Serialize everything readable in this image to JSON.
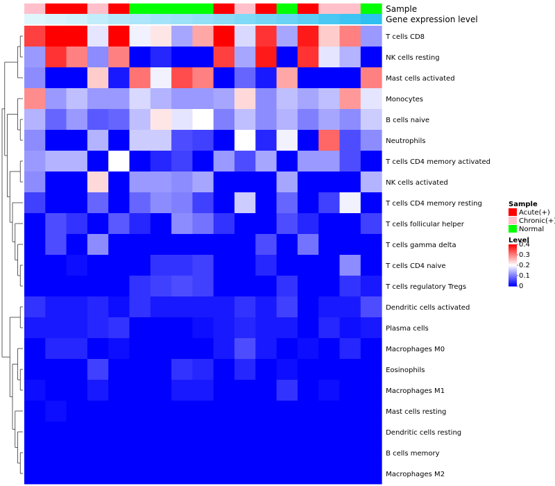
{
  "chart_data": {
    "type": "heatmap",
    "annotation_rows": [
      {
        "label": "Sample",
        "values": [
          "Chronic(+)",
          "Acute(+)",
          "Acute(+)",
          "Chronic(+)",
          "Acute(+)",
          "Normal",
          "Normal",
          "Normal",
          "Normal",
          "Acute(+)",
          "Chronic(+)",
          "Acute(+)",
          "Normal",
          "Acute(+)",
          "Chronic(+)",
          "Chronic(+)",
          "Normal"
        ]
      },
      {
        "label": "Gene expression level",
        "values": [
          1.2,
          1.5,
          1.8,
          2.4,
          2.9,
          3.2,
          3.6,
          3.9,
          4.2,
          4.5,
          5.0,
          5.4,
          5.8,
          6.4,
          7.1,
          7.6,
          8.2
        ]
      }
    ],
    "rows": [
      "T cells CD8",
      "NK cells resting",
      "Mast cells activated",
      "Monocytes",
      "B cells naive",
      "Neutrophils",
      "T cells CD4 memory activated",
      "NK cells activated",
      "T cells CD4 memory resting",
      "T cells follicular helper",
      "T cells gamma delta",
      "T cells CD4 naive",
      "T cells regulatory  Tregs",
      "Dendritic cells activated",
      "Plasma cells",
      "Macrophages M0",
      "Eosinophils",
      "Macrophages M1",
      "Mast cells resting",
      "Dendritic cells resting",
      "B cells memory",
      "Macrophages M2"
    ],
    "values": [
      [
        0.35,
        0.4,
        0.4,
        0.18,
        0.4,
        0.19,
        0.22,
        0.13,
        0.27,
        0.4,
        0.17,
        0.36,
        0.13,
        0.38,
        0.24,
        0.3,
        0.12
      ],
      [
        0.12,
        0.36,
        0.3,
        0.11,
        0.3,
        0.0,
        0.03,
        0.0,
        0.0,
        0.35,
        0.13,
        0.38,
        0.0,
        0.36,
        0.18,
        0.14,
        0.0
      ],
      [
        0.11,
        0.0,
        0.0,
        0.24,
        0.02,
        0.31,
        0.19,
        0.34,
        0.3,
        0.0,
        0.08,
        0.02,
        0.27,
        0.0,
        0.0,
        0.0,
        0.3
      ],
      [
        0.29,
        0.12,
        0.15,
        0.12,
        0.12,
        0.17,
        0.14,
        0.12,
        0.12,
        0.13,
        0.23,
        0.11,
        0.15,
        0.13,
        0.15,
        0.28,
        0.18
      ],
      [
        0.14,
        0.08,
        0.12,
        0.07,
        0.08,
        0.15,
        0.22,
        0.18,
        0.2,
        0.1,
        0.15,
        0.11,
        0.14,
        0.1,
        0.13,
        0.11,
        0.16
      ],
      [
        0.11,
        0.0,
        0.0,
        0.14,
        0.0,
        0.16,
        0.16,
        0.06,
        0.05,
        0.0,
        0.2,
        0.03,
        0.19,
        0.0,
        0.32,
        0.06,
        0.11
      ],
      [
        0.12,
        0.14,
        0.14,
        0.0,
        0.2,
        0.0,
        0.03,
        0.05,
        0.0,
        0.12,
        0.06,
        0.13,
        0.0,
        0.12,
        0.12,
        0.06,
        0.0
      ],
      [
        0.11,
        0.0,
        0.0,
        0.23,
        0.0,
        0.12,
        0.12,
        0.11,
        0.13,
        0.0,
        0.0,
        0.0,
        0.13,
        0.0,
        0.0,
        0.0,
        0.14
      ],
      [
        0.05,
        0.0,
        0.0,
        0.08,
        0.0,
        0.08,
        0.11,
        0.1,
        0.05,
        0.0,
        0.16,
        0.0,
        0.08,
        0.0,
        0.05,
        0.19,
        0.0
      ],
      [
        0.0,
        0.06,
        0.04,
        0.0,
        0.07,
        0.03,
        0.0,
        0.11,
        0.09,
        0.04,
        0.0,
        0.0,
        0.06,
        0.03,
        0.0,
        0.0,
        0.05
      ],
      [
        0.0,
        0.06,
        0.0,
        0.11,
        0.0,
        0.0,
        0.0,
        0.0,
        0.0,
        0.0,
        0.0,
        0.06,
        0.0,
        0.09,
        0.0,
        0.0,
        0.0
      ],
      [
        0.0,
        0.0,
        0.01,
        0.0,
        0.0,
        0.0,
        0.04,
        0.04,
        0.05,
        0.0,
        0.0,
        0.03,
        0.0,
        0.0,
        0.0,
        0.11,
        0.0
      ],
      [
        0.0,
        0.0,
        0.0,
        0.0,
        0.0,
        0.04,
        0.05,
        0.06,
        0.05,
        0.0,
        0.0,
        0.0,
        0.04,
        0.0,
        0.0,
        0.04,
        0.02
      ],
      [
        0.04,
        0.02,
        0.02,
        0.03,
        0.01,
        0.04,
        0.02,
        0.02,
        0.02,
        0.02,
        0.04,
        0.02,
        0.05,
        0.0,
        0.02,
        0.02,
        0.06
      ],
      [
        0.02,
        0.02,
        0.02,
        0.03,
        0.04,
        0.0,
        0.0,
        0.0,
        0.01,
        0.02,
        0.03,
        0.02,
        0.02,
        0.0,
        0.03,
        0.01,
        0.02
      ],
      [
        0.0,
        0.03,
        0.03,
        0.0,
        0.01,
        0.0,
        0.0,
        0.0,
        0.0,
        0.02,
        0.06,
        0.02,
        0.0,
        0.01,
        0.0,
        0.03,
        0.0
      ],
      [
        0.0,
        0.0,
        0.0,
        0.05,
        0.0,
        0.0,
        0.0,
        0.04,
        0.03,
        0.0,
        0.03,
        0.0,
        0.01,
        0.0,
        0.0,
        0.0,
        0.0
      ],
      [
        0.01,
        0.0,
        0.0,
        0.02,
        0.0,
        0.0,
        0.0,
        0.02,
        0.02,
        0.0,
        0.0,
        0.0,
        0.04,
        0.0,
        0.01,
        0.0,
        0.0
      ],
      [
        0.0,
        0.01,
        0.0,
        0.0,
        0.0,
        0.0,
        0.0,
        0.0,
        0.0,
        0.0,
        0.0,
        0.0,
        0.0,
        0.0,
        0.0,
        0.0,
        0.0
      ],
      [
        0.0,
        0.0,
        0.0,
        0.0,
        0.0,
        0.0,
        0.0,
        0.0,
        0.0,
        0.0,
        0.0,
        0.0,
        0.0,
        0.0,
        0.0,
        0.0,
        0.0
      ],
      [
        0.0,
        0.0,
        0.0,
        0.0,
        0.0,
        0.0,
        0.0,
        0.0,
        0.0,
        0.0,
        0.0,
        0.0,
        0.0,
        0.0,
        0.0,
        0.0,
        0.0
      ],
      [
        0.0,
        0.0,
        0.0,
        0.0,
        0.0,
        0.0,
        0.0,
        0.0,
        0.0,
        0.0,
        0.0,
        0.0,
        0.0,
        0.0,
        0.0,
        0.0,
        0.0
      ]
    ],
    "color_scale": {
      "min": 0,
      "mid": 0.2,
      "max": 0.4,
      "low": "#0000ff",
      "midcolor": "#ffffff",
      "high": "#ff0000"
    },
    "legend_sample": {
      "title": "Sample",
      "entries": [
        {
          "label": "Acute(+)",
          "color": "#ff0000"
        },
        {
          "label": "Chronic(+)",
          "color": "#ffc0cb"
        },
        {
          "label": "Normal",
          "color": "#00ff00"
        }
      ]
    },
    "legend_level": {
      "title": "Level",
      "ticks": [
        {
          "value": 0.4,
          "label": "0.4"
        },
        {
          "value": 0.3,
          "label": "0.3"
        },
        {
          "value": 0.2,
          "label": "0.2"
        },
        {
          "value": 0.1,
          "label": "0.1"
        },
        {
          "value": 0,
          "label": "0"
        }
      ]
    },
    "gene_level_scale": {
      "low": "#ffffff",
      "high": "#00b2ee",
      "min": 0,
      "max": 10
    },
    "dendrogram": {
      "side": "left",
      "tree": [
        [
          [
            [
              0,
              1
            ],
            2
          ],
          [
            [
              3,
              [
                4,
                5
              ]
            ],
            [
              [
                6,
                7
              ],
              [
                8,
                [
                  9,
                  [
                    10,
                    [
                      11,
                      12
                    ]
                  ]
                ]
              ]
            ]
          ]
        ],
        [
          [
            13,
            14
          ],
          [
            [
              15,
              [
                16,
                17
              ]
            ],
            [
              18,
              [
                19,
                [
                  20,
                  21
                ]
              ]
            ]
          ]
        ]
      ]
    }
  }
}
